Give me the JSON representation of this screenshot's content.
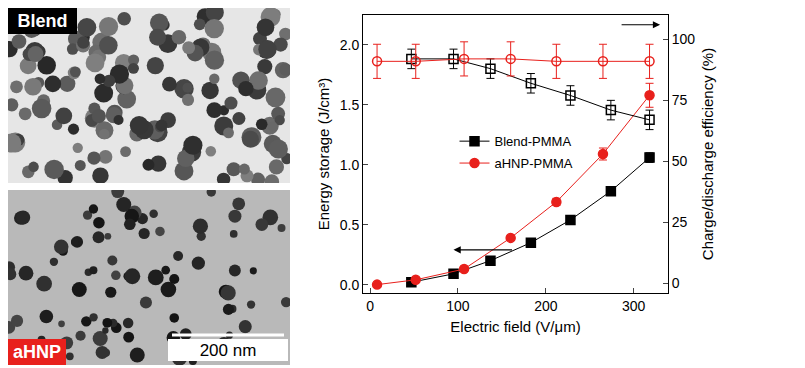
{
  "images": [
    {
      "label": "Blend",
      "label_color": "#000000"
    },
    {
      "label": "aHNP",
      "label_color": "#e8201c",
      "scale_bar": "200 nm"
    }
  ],
  "chart_data": {
    "type": "scatter",
    "x_label": "Electric field (V/μm)",
    "y_label": "Energy storage (J/cm³)",
    "y2_label": "Charge/discharge efficiency (%)",
    "xlim": [
      -8,
      339
    ],
    "xticks": [
      0,
      100,
      200,
      300
    ],
    "ylim": [
      -0.07,
      2.25
    ],
    "yticks": [
      {
        "value": 0,
        "label": "0.0"
      },
      {
        "value": 0.5,
        "label": "0.5"
      },
      {
        "value": 1,
        "label": "1.0"
      },
      {
        "value": 1.5,
        "label": "1.5"
      },
      {
        "value": 2,
        "label": "2.0"
      }
    ],
    "y2lim": [
      -4,
      110
    ],
    "y2ticks": [
      0,
      25,
      50,
      75,
      100
    ],
    "grid": false,
    "legend": "left",
    "series": [
      {
        "name": "Blend-PMMA",
        "color": "#000000",
        "marker": "square",
        "line_style": "solid",
        "axis": "y",
        "x": [
          47,
          95,
          137,
          183,
          228,
          274,
          318
        ],
        "values": [
          0.02,
          0.09,
          0.2,
          0.35,
          0.54,
          0.78,
          1.06
        ],
        "errors": [
          0.01,
          0.01,
          0.01,
          0.015,
          0.02,
          0.03,
          0.04
        ]
      },
      {
        "name": "aHNP-PMMA",
        "color": "#e8201c",
        "marker": "circle",
        "line_style": "solid",
        "axis": "y",
        "x": [
          8,
          52,
          107,
          160,
          212,
          265,
          318
        ],
        "values": [
          0.0,
          0.04,
          0.13,
          0.39,
          0.69,
          1.09,
          1.58
        ],
        "errors": [
          0.005,
          0.01,
          0.015,
          0.02,
          0.03,
          0.05,
          0.1
        ]
      },
      {
        "name": "Blend-PMMA",
        "color": "#000000",
        "marker": "square-open",
        "line_style": "solid",
        "axis": "y2",
        "x": [
          47,
          95,
          137,
          183,
          228,
          274,
          318
        ],
        "values": [
          92,
          92,
          88,
          82,
          77,
          71,
          67
        ],
        "errors": [
          4,
          4,
          4,
          4,
          4,
          4,
          4
        ]
      },
      {
        "name": "aHNP-PMMA",
        "color": "#e8201c",
        "marker": "circle-open",
        "line_style": "solid",
        "axis": "y2",
        "x": [
          8,
          52,
          107,
          160,
          212,
          265,
          318
        ],
        "values": [
          91,
          91,
          92,
          92,
          91,
          91,
          91
        ],
        "errors": [
          7,
          7,
          7,
          7,
          7,
          7,
          7
        ]
      }
    ]
  }
}
